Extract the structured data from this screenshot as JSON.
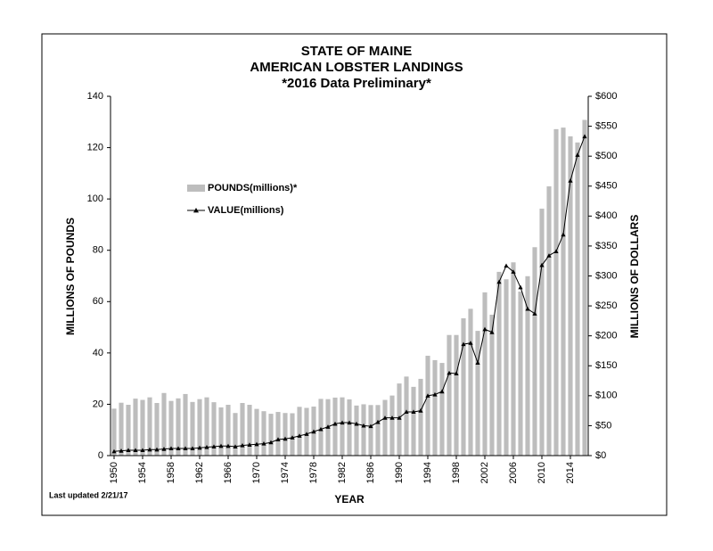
{
  "chart_data": {
    "type": "bar-line",
    "title": [
      "STATE OF MAINE",
      "AMERICAN LOBSTER LANDINGS",
      "*2016 Data Preliminary*"
    ],
    "x_label": "YEAR",
    "y_label": "MILLIONS OF POUNDS",
    "y2_label": "MILLIONS OF DOLLARS",
    "footnote": "Last updated 2/21/17",
    "x": [
      1950,
      1951,
      1952,
      1953,
      1954,
      1955,
      1956,
      1957,
      1958,
      1959,
      1960,
      1961,
      1962,
      1963,
      1964,
      1965,
      1966,
      1967,
      1968,
      1969,
      1970,
      1971,
      1972,
      1973,
      1974,
      1975,
      1976,
      1977,
      1978,
      1979,
      1980,
      1981,
      1982,
      1983,
      1984,
      1985,
      1986,
      1987,
      1988,
      1989,
      1990,
      1991,
      1992,
      1993,
      1994,
      1995,
      1996,
      1997,
      1998,
      1999,
      2000,
      2001,
      2002,
      2003,
      2004,
      2005,
      2006,
      2007,
      2008,
      2009,
      2010,
      2011,
      2012,
      2013,
      2014,
      2015,
      2016
    ],
    "xlim": [
      1949.5,
      2016.5
    ],
    "xticks": [
      1950,
      1954,
      1958,
      1962,
      1966,
      1970,
      1974,
      1978,
      1982,
      1986,
      1990,
      1994,
      1998,
      2002,
      2006,
      2010,
      2014
    ],
    "ylim": [
      0,
      140
    ],
    "yticks": [
      0,
      20,
      40,
      60,
      80,
      100,
      120,
      140
    ],
    "y2lim": [
      0,
      600
    ],
    "y2ticks": [
      {
        "value": 0,
        "label": "$0"
      },
      {
        "value": 50,
        "label": "$50"
      },
      {
        "value": 100,
        "label": "$100"
      },
      {
        "value": 150,
        "label": "$150"
      },
      {
        "value": 200,
        "label": "$200"
      },
      {
        "value": 250,
        "label": "$250"
      },
      {
        "value": 300,
        "label": "$300"
      },
      {
        "value": 350,
        "label": "$350"
      },
      {
        "value": 400,
        "label": "$400"
      },
      {
        "value": 450,
        "label": "$450"
      },
      {
        "value": 500,
        "label": "$500"
      },
      {
        "value": 550,
        "label": "$550"
      },
      {
        "value": 600,
        "label": "$600"
      }
    ],
    "grid": false,
    "series": [
      {
        "name": "POUNDS(millions)*",
        "kind": "bar",
        "color": "#bdbdbd",
        "axis": "y",
        "values": [
          18.3,
          20.6,
          19.8,
          22.2,
          21.7,
          22.7,
          20.5,
          24.4,
          21.3,
          22.3,
          24.0,
          20.9,
          22.0,
          22.7,
          20.8,
          18.8,
          19.8,
          16.6,
          20.5,
          19.8,
          18.2,
          17.3,
          16.3,
          17.0,
          16.6,
          16.5,
          19.0,
          18.6,
          19.1,
          22.1,
          22.0,
          22.6,
          22.7,
          21.9,
          19.5,
          20.0,
          19.7,
          19.7,
          21.7,
          23.4,
          28.1,
          30.8,
          26.8,
          29.9,
          38.9,
          37.2,
          36.1,
          47.0,
          47.0,
          53.5,
          57.2,
          48.6,
          63.6,
          54.9,
          71.6,
          68.7,
          75.3,
          63.9,
          69.9,
          81.2,
          96.2,
          104.9,
          127.2,
          127.8,
          124.4,
          122.0,
          130.8
        ]
      },
      {
        "name": "VALUE(millions)",
        "kind": "line",
        "color": "#000000",
        "axis": "y2",
        "values": [
          7,
          8,
          9,
          9,
          9,
          10,
          10,
          11,
          12,
          12,
          12,
          12,
          13,
          14,
          15,
          16,
          16,
          15,
          17,
          18,
          19,
          20,
          22,
          27,
          28,
          30,
          33,
          36,
          40,
          44,
          48,
          53,
          55,
          55,
          53,
          50,
          49,
          56,
          63,
          63,
          63,
          73,
          73,
          75,
          100,
          102,
          107,
          138,
          137,
          186,
          188,
          155,
          211,
          206,
          290,
          317,
          307,
          281,
          245,
          237,
          318,
          334,
          341,
          369,
          459,
          502,
          533
        ]
      }
    ]
  }
}
